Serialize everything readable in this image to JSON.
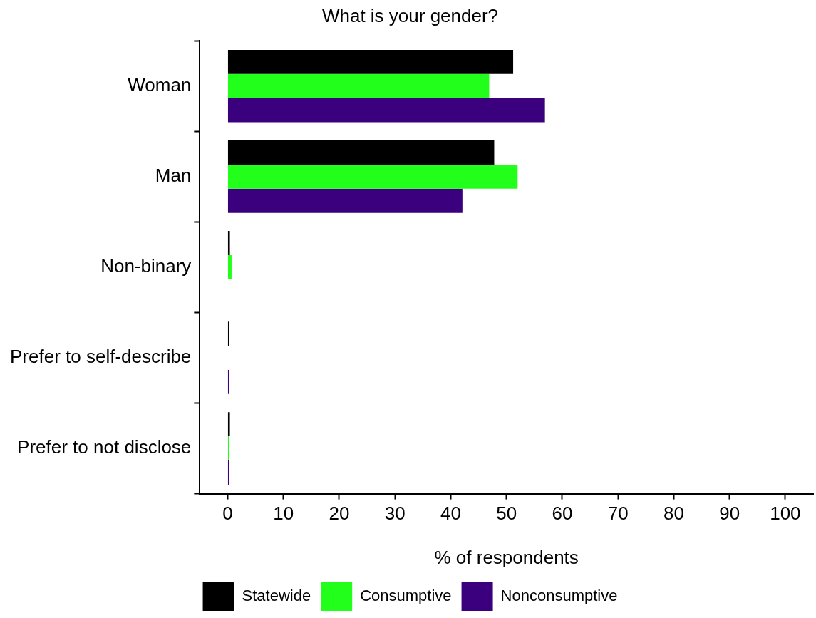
{
  "chart_data": {
    "type": "bar",
    "orientation": "horizontal",
    "title": "What is your gender?",
    "xlabel": "% of respondents",
    "categories": [
      "Woman",
      "Man",
      "Non-binary",
      "Prefer to self-describe",
      "Prefer to not disclose"
    ],
    "series": [
      {
        "name": "Statewide",
        "color": "#000000",
        "values": [
          51.2,
          47.8,
          0.4,
          0.2,
          0.4
        ]
      },
      {
        "name": "Consumptive",
        "color": "#22ff1a",
        "values": [
          46.9,
          52.0,
          0.7,
          0,
          0.2
        ]
      },
      {
        "name": "Nonconsumptive",
        "color": "#3a007d",
        "values": [
          56.9,
          42.1,
          0,
          0.3,
          0.3
        ]
      }
    ],
    "xlim": [
      -5,
      105
    ],
    "xticks": [
      0,
      10,
      20,
      30,
      40,
      50,
      60,
      70,
      80,
      90,
      100
    ],
    "grid": false,
    "legend": "bottom"
  }
}
